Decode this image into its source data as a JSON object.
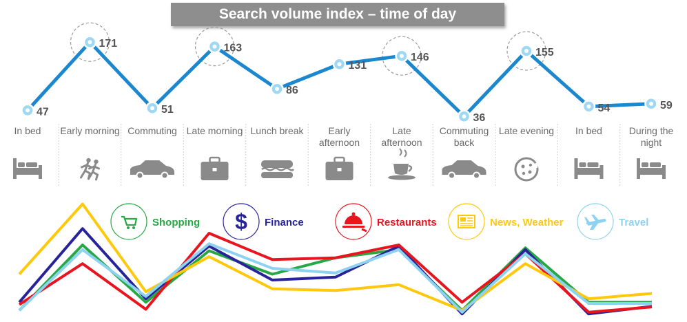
{
  "title": "Search volume index – time of day",
  "colors": {
    "main_line": "#1b87cf",
    "marker_fill": "#9fd8f3",
    "label": "#555555",
    "period_text": "#6a6a6a",
    "icon": "#8a8a8a",
    "divider": "#d0d0d0",
    "halo": "#9a9a9a"
  },
  "chart_data": [
    {
      "type": "line",
      "categories": [
        "In bed",
        "Early morning",
        "Commuting",
        "Late morning",
        "Lunch break",
        "Early afternoon",
        "Late afternoon",
        "Commuting back",
        "Late evening",
        "In bed",
        "During the night"
      ],
      "series": [
        {
          "values": [
            47,
            171,
            51,
            163,
            86,
            131,
            146,
            36,
            155,
            54,
            59
          ]
        }
      ],
      "data_labels": [
        "47",
        "171",
        "51",
        "163",
        "86",
        "131",
        "146",
        "36",
        "155",
        "54",
        "59"
      ],
      "highlighted_points": [
        1,
        3,
        6,
        8
      ],
      "period_labels": [
        [
          "In bed"
        ],
        [
          "Early morning"
        ],
        [
          "Commuting"
        ],
        [
          "Late morning"
        ],
        [
          "Lunch break"
        ],
        [
          "Early",
          "afternoon"
        ],
        [
          "Late",
          "afternoon"
        ],
        [
          "Commuting",
          "back"
        ],
        [
          "Late evening"
        ],
        [
          "In bed"
        ],
        [
          "During the",
          "night"
        ]
      ],
      "period_icons": [
        "bed-icon",
        "runners-icon",
        "car-icon",
        "briefcase-icon",
        "sandwich-icon",
        "briefcase-icon",
        "coffee-cup-icon",
        "car-icon",
        "pizza-icon",
        "bed-icon",
        "bed-icon"
      ],
      "ylim": [
        0,
        200
      ]
    },
    {
      "type": "line",
      "categories": [
        "In bed",
        "Early morning",
        "Commuting",
        "Late morning",
        "Lunch break",
        "Early afternoon",
        "Late afternoon",
        "Commuting back",
        "Late evening",
        "In bed",
        "During the night"
      ],
      "ylim": [
        0,
        200
      ],
      "series": [
        {
          "name": "Shopping",
          "color": "#27a845",
          "values": [
            8,
            120,
            22,
            110,
            70,
            98,
            112,
            8,
            115,
            22,
            22
          ]
        },
        {
          "name": "Finance",
          "color": "#27239a",
          "values": [
            22,
            148,
            28,
            118,
            60,
            65,
            118,
            2,
            112,
            2,
            15
          ]
        },
        {
          "name": "Restaurants",
          "color": "#e8151f",
          "values": [
            18,
            88,
            10,
            140,
            95,
            98,
            120,
            22,
            105,
            5,
            14
          ]
        },
        {
          "name": "News, Weather",
          "color": "#ffc80a",
          "values": [
            70,
            190,
            40,
            100,
            45,
            42,
            52,
            8,
            88,
            28,
            37
          ]
        },
        {
          "name": "Travel",
          "color": "#8ed2f2",
          "values": [
            8,
            112,
            32,
            122,
            80,
            72,
            112,
            5,
            105,
            20,
            20
          ]
        }
      ],
      "legend_icons": [
        "cart-icon",
        "dollar-icon",
        "cloche-icon",
        "newspaper-icon",
        "plane-icon"
      ]
    }
  ]
}
